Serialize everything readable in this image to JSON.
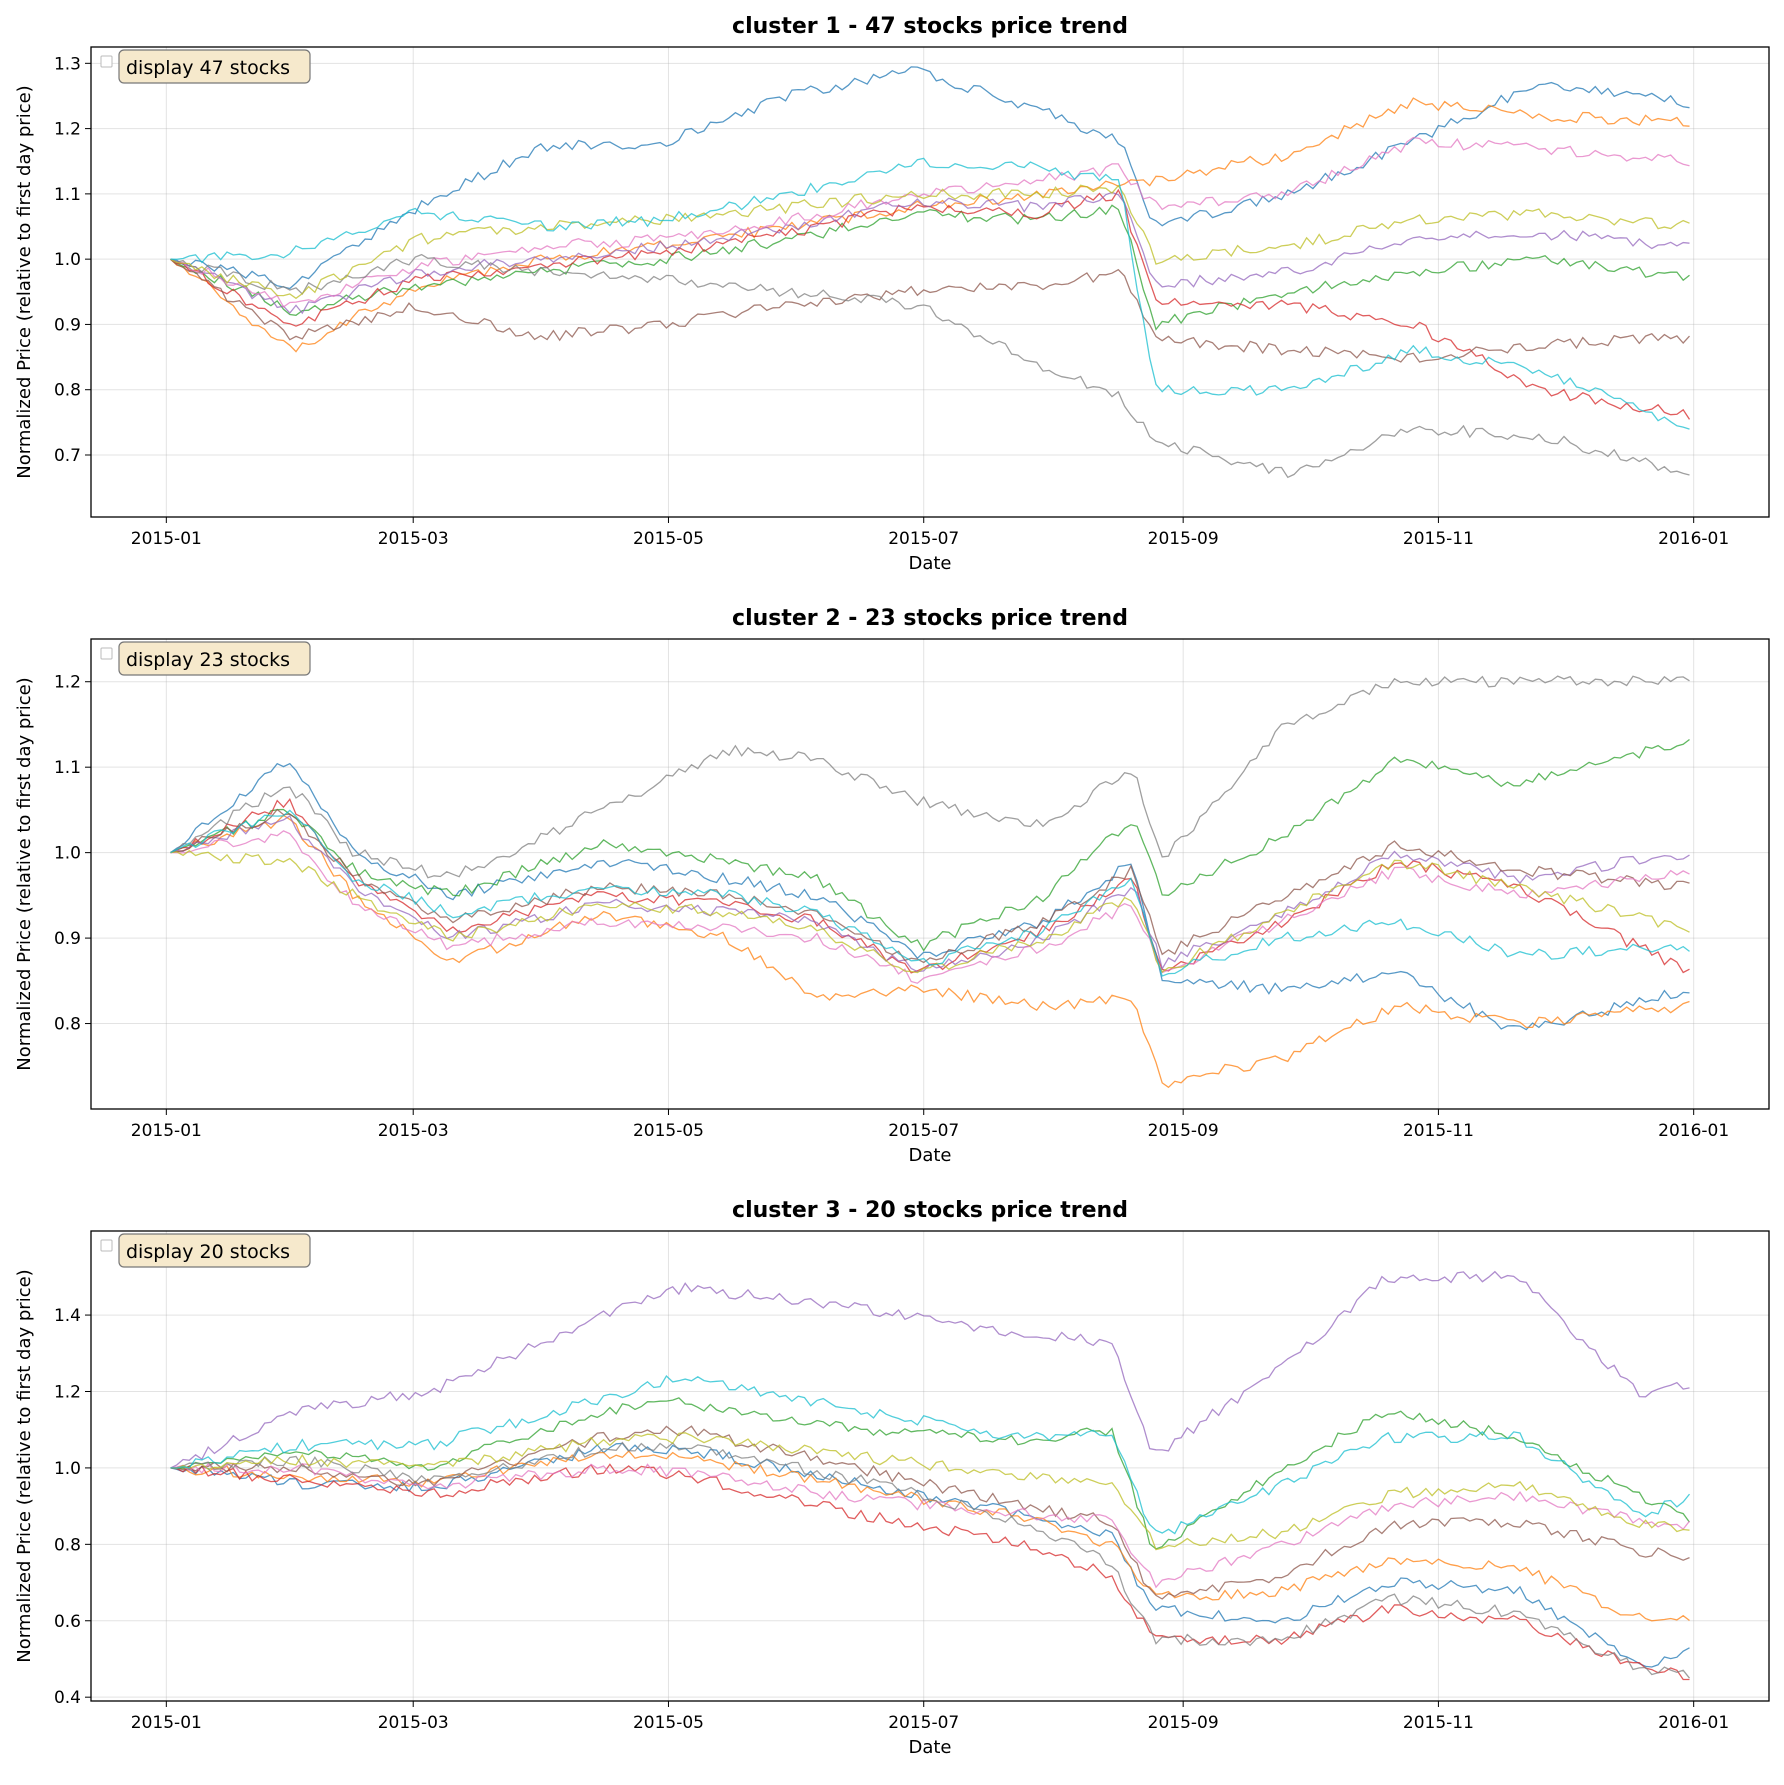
{
  "figure": {
    "panels": [
      {
        "title": "cluster 1 - 47 stocks price trend",
        "legend_text": "display 47 stocks",
        "xlabel": "Date",
        "ylabel": "Normalized Price (relative to first day price)",
        "yticks": [
          "0.7",
          "0.8",
          "0.9",
          "1.0",
          "1.1",
          "1.2",
          "1.3"
        ],
        "xticks": [
          "2015-01",
          "2015-03",
          "2015-05",
          "2015-07",
          "2015-09",
          "2015-11",
          "2016-01"
        ]
      },
      {
        "title": "cluster 2 - 23 stocks price trend",
        "legend_text": "display 23 stocks",
        "xlabel": "Date",
        "ylabel": "Normalized Price (relative to first day price)",
        "yticks": [
          "0.8",
          "0.9",
          "1.0",
          "1.1",
          "1.2"
        ],
        "xticks": [
          "2015-01",
          "2015-03",
          "2015-05",
          "2015-07",
          "2015-09",
          "2015-11",
          "2016-01"
        ]
      },
      {
        "title": "cluster 3 - 20 stocks price trend",
        "legend_text": "display 20 stocks",
        "xlabel": "Date",
        "ylabel": "Normalized Price (relative to first day price)",
        "yticks": [
          "0.4",
          "0.6",
          "0.8",
          "1.0",
          "1.2",
          "1.4"
        ],
        "xticks": [
          "2015-01",
          "2015-03",
          "2015-05",
          "2015-07",
          "2015-09",
          "2015-11",
          "2016-01"
        ]
      }
    ]
  },
  "chart_data": [
    {
      "type": "line",
      "title": "cluster 1 - 47 stocks price trend",
      "xlabel": "Date",
      "ylabel": "Normalized Price (relative to first day price)",
      "x_type": "date",
      "xlim": [
        "2014-12-14",
        "2016-01-19"
      ],
      "ylim": [
        0.605,
        1.325
      ],
      "legend": "top-left",
      "grid": true,
      "series_count": 47,
      "palette": [
        "#1f77b4",
        "#ff7f0e",
        "#2ca02c",
        "#d62728",
        "#9467bd",
        "#8c564b",
        "#e377c2",
        "#7f7f7f",
        "#bcbd22",
        "#17becf"
      ],
      "x": [
        "2015-01-02",
        "2015-01-31",
        "2015-03-02",
        "2015-03-31",
        "2015-04-30",
        "2015-05-30",
        "2015-06-29",
        "2015-07-28",
        "2015-08-17",
        "2015-08-25",
        "2015-09-26",
        "2015-10-26",
        "2015-11-25",
        "2015-12-31"
      ],
      "series": [
        {
          "values": [
            1.0,
            0.96,
            1.08,
            1.17,
            1.18,
            1.25,
            1.29,
            1.23,
            1.18,
            1.05,
            1.1,
            1.18,
            1.27,
            1.24
          ]
        },
        {
          "values": [
            1.0,
            0.86,
            0.96,
            1.0,
            1.02,
            1.05,
            1.08,
            1.1,
            1.12,
            1.12,
            1.16,
            1.24,
            1.22,
            1.21
          ]
        },
        {
          "values": [
            1.0,
            0.92,
            0.96,
            0.98,
            1.0,
            1.03,
            1.07,
            1.06,
            1.08,
            0.9,
            0.95,
            0.98,
            1.0,
            0.97
          ]
        },
        {
          "values": [
            1.0,
            0.9,
            0.97,
            0.99,
            1.01,
            1.04,
            1.08,
            1.07,
            1.1,
            0.94,
            0.93,
            0.9,
            0.8,
            0.76
          ]
        },
        {
          "values": [
            1.0,
            0.92,
            0.98,
            1.0,
            1.02,
            1.05,
            1.09,
            1.08,
            1.1,
            0.96,
            0.98,
            1.03,
            1.04,
            1.02
          ]
        },
        {
          "values": [
            1.0,
            0.88,
            0.93,
            0.88,
            0.9,
            0.93,
            0.95,
            0.96,
            0.98,
            0.88,
            0.86,
            0.85,
            0.87,
            0.88
          ]
        },
        {
          "values": [
            1.0,
            0.93,
            0.99,
            1.02,
            1.03,
            1.06,
            1.1,
            1.12,
            1.14,
            1.08,
            1.1,
            1.18,
            1.17,
            1.15
          ]
        },
        {
          "values": [
            1.0,
            0.95,
            1.0,
            0.98,
            0.97,
            0.95,
            0.93,
            0.84,
            0.79,
            0.72,
            0.67,
            0.74,
            0.73,
            0.67
          ]
        },
        {
          "values": [
            1.0,
            0.94,
            1.03,
            1.05,
            1.06,
            1.08,
            1.1,
            1.1,
            1.11,
            1.0,
            1.02,
            1.06,
            1.07,
            1.05
          ]
        },
        {
          "values": [
            1.0,
            1.01,
            1.07,
            1.05,
            1.06,
            1.1,
            1.15,
            1.14,
            1.12,
            0.8,
            0.8,
            0.86,
            0.83,
            0.74
          ]
        }
      ]
    },
    {
      "type": "line",
      "title": "cluster 2 - 23 stocks price trend",
      "xlabel": "Date",
      "ylabel": "Normalized Price (relative to first day price)",
      "x_type": "date",
      "xlim": [
        "2014-12-14",
        "2016-01-19"
      ],
      "ylim": [
        0.7,
        1.25
      ],
      "legend": "top-left",
      "grid": true,
      "series_count": 23,
      "palette": [
        "#1f77b4",
        "#ff7f0e",
        "#2ca02c",
        "#d62728",
        "#9467bd",
        "#8c564b",
        "#e377c2",
        "#7f7f7f",
        "#bcbd22",
        "#17becf"
      ],
      "x": [
        "2015-01-02",
        "2015-01-30",
        "2015-02-15",
        "2015-03-10",
        "2015-04-15",
        "2015-05-15",
        "2015-06-05",
        "2015-06-30",
        "2015-07-30",
        "2015-08-20",
        "2015-08-27",
        "2015-09-25",
        "2015-10-22",
        "2015-11-20",
        "2015-12-31"
      ],
      "series": [
        {
          "values": [
            1.0,
            1.11,
            1.0,
            0.95,
            0.99,
            0.97,
            0.95,
            0.88,
            0.92,
            0.99,
            0.85,
            0.84,
            0.86,
            0.79,
            0.84
          ]
        },
        {
          "values": [
            1.0,
            1.04,
            0.95,
            0.87,
            0.93,
            0.9,
            0.83,
            0.84,
            0.82,
            0.83,
            0.73,
            0.76,
            0.82,
            0.8,
            0.82
          ]
        },
        {
          "values": [
            1.0,
            1.05,
            0.98,
            0.95,
            1.01,
            0.99,
            0.97,
            0.89,
            0.95,
            1.04,
            0.95,
            1.02,
            1.11,
            1.08,
            1.13
          ]
        },
        {
          "values": [
            1.0,
            1.06,
            0.97,
            0.91,
            0.95,
            0.94,
            0.92,
            0.86,
            0.91,
            0.97,
            0.86,
            0.92,
            0.99,
            0.96,
            0.86
          ]
        },
        {
          "values": [
            1.0,
            1.04,
            0.96,
            0.9,
            0.94,
            0.93,
            0.92,
            0.86,
            0.9,
            0.96,
            0.87,
            0.93,
            1.0,
            0.97,
            1.0
          ]
        },
        {
          "values": [
            1.0,
            1.05,
            0.97,
            0.92,
            0.96,
            0.95,
            0.93,
            0.87,
            0.92,
            0.98,
            0.88,
            0.95,
            1.01,
            0.98,
            0.96
          ]
        },
        {
          "values": [
            1.0,
            1.02,
            0.94,
            0.89,
            0.92,
            0.91,
            0.9,
            0.85,
            0.89,
            0.94,
            0.86,
            0.92,
            0.98,
            0.95,
            0.98
          ]
        },
        {
          "values": [
            1.0,
            1.08,
            1.0,
            0.97,
            1.05,
            1.12,
            1.11,
            1.06,
            1.03,
            1.1,
            0.99,
            1.15,
            1.2,
            1.2,
            1.2
          ]
        },
        {
          "values": [
            1.0,
            0.99,
            0.95,
            0.9,
            0.94,
            0.93,
            0.91,
            0.86,
            0.9,
            0.95,
            0.86,
            0.93,
            0.99,
            0.96,
            0.91
          ]
        },
        {
          "values": [
            1.0,
            1.05,
            0.97,
            0.93,
            0.96,
            0.95,
            0.93,
            0.87,
            0.91,
            0.97,
            0.86,
            0.9,
            0.92,
            0.88,
            0.89
          ]
        }
      ]
    },
    {
      "type": "line",
      "title": "cluster 3 - 20 stocks price trend",
      "xlabel": "Date",
      "ylabel": "Normalized Price (relative to first day price)",
      "x_type": "date",
      "xlim": [
        "2014-12-14",
        "2016-01-19"
      ],
      "ylim": [
        0.39,
        1.62
      ],
      "legend": "top-left",
      "grid": true,
      "series_count": 20,
      "palette": [
        "#1f77b4",
        "#ff7f0e",
        "#2ca02c",
        "#d62728",
        "#9467bd",
        "#8c564b",
        "#e377c2",
        "#7f7f7f",
        "#bcbd22",
        "#17becf"
      ],
      "x": [
        "2015-01-02",
        "2015-02-01",
        "2015-03-05",
        "2015-04-15",
        "2015-05-05",
        "2015-06-15",
        "2015-07-25",
        "2015-08-15",
        "2015-08-25",
        "2015-09-25",
        "2015-10-20",
        "2015-11-20",
        "2015-12-20",
        "2015-12-31"
      ],
      "series": [
        {
          "values": [
            1.0,
            0.96,
            0.95,
            1.05,
            1.05,
            0.96,
            0.88,
            0.82,
            0.63,
            0.6,
            0.7,
            0.68,
            0.48,
            0.53
          ]
        },
        {
          "values": [
            1.0,
            0.98,
            0.96,
            1.04,
            1.03,
            0.95,
            0.87,
            0.8,
            0.66,
            0.68,
            0.76,
            0.74,
            0.6,
            0.6
          ]
        },
        {
          "values": [
            1.0,
            1.04,
            1.0,
            1.15,
            1.17,
            1.1,
            1.07,
            1.1,
            0.78,
            1.0,
            1.15,
            1.08,
            0.92,
            0.86
          ]
        },
        {
          "values": [
            1.0,
            0.97,
            0.93,
            1.0,
            0.98,
            0.88,
            0.8,
            0.72,
            0.55,
            0.55,
            0.63,
            0.6,
            0.48,
            0.45
          ]
        },
        {
          "values": [
            1.0,
            1.15,
            1.2,
            1.4,
            1.47,
            1.42,
            1.35,
            1.33,
            1.03,
            1.27,
            1.5,
            1.5,
            1.18,
            1.22
          ]
        },
        {
          "values": [
            1.0,
            1.0,
            0.96,
            1.08,
            1.1,
            1.0,
            0.9,
            0.86,
            0.66,
            0.72,
            0.85,
            0.86,
            0.78,
            0.77
          ]
        },
        {
          "values": [
            1.0,
            1.0,
            0.95,
            1.0,
            0.99,
            0.92,
            0.88,
            0.86,
            0.7,
            0.8,
            0.9,
            0.93,
            0.86,
            0.85
          ]
        },
        {
          "values": [
            1.0,
            1.02,
            0.97,
            1.05,
            1.06,
            0.97,
            0.86,
            0.75,
            0.55,
            0.55,
            0.66,
            0.62,
            0.47,
            0.46
          ]
        },
        {
          "values": [
            1.0,
            1.02,
            1.0,
            1.07,
            1.08,
            1.03,
            0.98,
            0.96,
            0.8,
            0.83,
            0.93,
            0.96,
            0.85,
            0.84
          ]
        },
        {
          "values": [
            1.0,
            1.06,
            1.06,
            1.18,
            1.24,
            1.15,
            1.08,
            1.09,
            0.82,
            0.96,
            1.08,
            1.08,
            0.88,
            0.92
          ]
        }
      ]
    }
  ]
}
